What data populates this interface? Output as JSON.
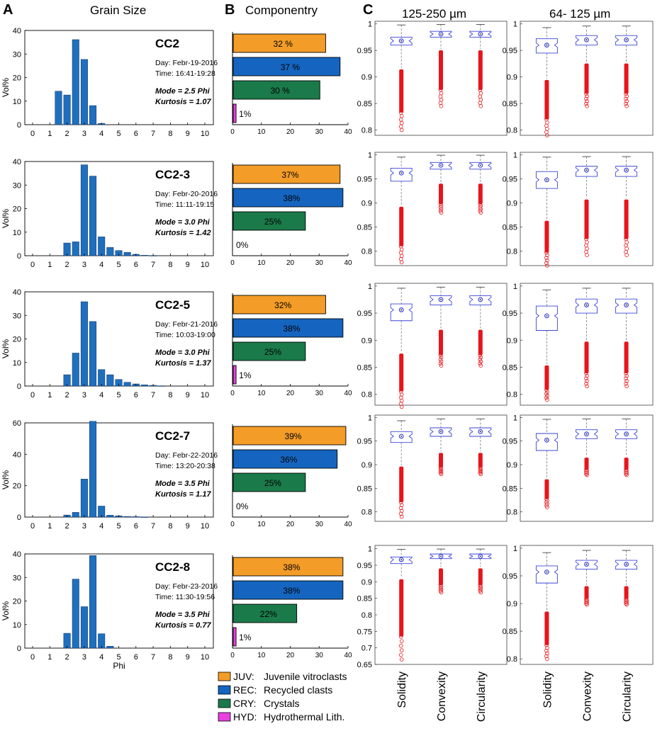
{
  "headers": {
    "A_letter": "A",
    "A_title": "Grain Size",
    "B_letter": "B",
    "B_title": "Componentry",
    "C_letter": "C",
    "C_col1": "125-250 µm",
    "C_col2": "64- 125 µm"
  },
  "legend": [
    {
      "code": "JUV:",
      "label": "Juvenile vitroclasts",
      "color": "#f39c27"
    },
    {
      "code": "REC:",
      "label": "Recycled clasts",
      "color": "#1565c0"
    },
    {
      "code": "CRY:",
      "label": "Crystals",
      "color": "#1a7a4a"
    },
    {
      "code": "HYD:",
      "label": "Hydrothermal Lith.",
      "color": "#e83fe0"
    }
  ],
  "colors": {
    "bar": "#1f6fbf",
    "box": "#3b44d6",
    "outlier": "#e8141b",
    "whisker": "#777777"
  },
  "chart_data": {
    "grain_size": {
      "type": "bar",
      "x": [
        0,
        0.5,
        1,
        1.5,
        2,
        2.5,
        3,
        3.5,
        4,
        4.5,
        5,
        5.5,
        6,
        6.5,
        7,
        7.5,
        8,
        8.5,
        9,
        9.5,
        10
      ],
      "xticks": [
        "0",
        "1",
        "2",
        "3",
        "4",
        "5",
        "6",
        "7",
        "8",
        "9",
        "10"
      ],
      "xlabel": "Phi",
      "ylabel": "Vol%",
      "samples": [
        {
          "name": "CC2",
          "day": "Day: Febr-19-2016",
          "time": "Time: 16:41-19:28",
          "mode": "Mode = 2.5 Phi",
          "kurtosis": "Kurtosis = 1.07",
          "ymax": 40,
          "yticks": [
            "0",
            "10",
            "20",
            "30",
            "40"
          ],
          "values": [
            0,
            0,
            0,
            14.2,
            12.6,
            36.1,
            27.7,
            8.1,
            0.5,
            0,
            0,
            0,
            0,
            0,
            0,
            0,
            0,
            0,
            0,
            0,
            0
          ]
        },
        {
          "name": "CC2-3",
          "day": "Day: Febr-20-2016",
          "time": "Time: 11:11-19:15",
          "mode": "Mode = 3.0 Phi",
          "kurtosis": "Kurtosis = 1.42",
          "ymax": 40,
          "yticks": [
            "0",
            "10",
            "20",
            "30",
            "40"
          ],
          "values": [
            0,
            0,
            0,
            0,
            5.4,
            5.9,
            38.6,
            33.8,
            8.0,
            3.5,
            2.2,
            1.4,
            0.6,
            0.2,
            0.1,
            0,
            0,
            0,
            0,
            0,
            0
          ]
        },
        {
          "name": "CC2-5",
          "day": "Day: Febr-21-2016",
          "time": "Time: 10:03-19:00",
          "mode": "Mode = 3.0 Phi",
          "kurtosis": "Kurtosis = 1.37",
          "ymax": 40,
          "yticks": [
            "0",
            "10",
            "20",
            "30",
            "40"
          ],
          "values": [
            0,
            0,
            0,
            0,
            4.8,
            14.0,
            35.8,
            27.4,
            7.0,
            4.8,
            2.8,
            1.6,
            0.9,
            0.5,
            0.3,
            0.1,
            0,
            0,
            0,
            0,
            0
          ]
        },
        {
          "name": "CC2-7",
          "day": "Day: Febr-22-2016",
          "time": "Time: 13:20-20:38",
          "mode": "Mode = 3.5 Phi",
          "kurtosis": "Kurtosis = 1.17",
          "ymax": 60,
          "yticks": [
            "0",
            "20",
            "40",
            "60"
          ],
          "values": [
            0,
            0,
            0,
            0,
            1.3,
            3.0,
            24.2,
            61.0,
            7.0,
            1.2,
            0.8,
            0.4,
            0.3,
            0.1,
            0,
            0,
            0,
            0,
            0,
            0,
            0
          ]
        },
        {
          "name": "CC2-8",
          "day": "Day: Febr-23-2016",
          "time": "Time: 11:30-19:56",
          "mode": "Mode = 3.5 Phi",
          "kurtosis": "Kurtosis = 0.77",
          "ymax": 40,
          "yticks": [
            "0",
            "10",
            "20",
            "30",
            "40"
          ],
          "values": [
            0,
            0,
            0,
            0,
            6.3,
            29.3,
            17.6,
            39.3,
            6.1,
            0.8,
            0,
            0,
            0,
            0,
            0,
            0,
            0,
            0,
            0,
            0,
            0
          ]
        }
      ]
    },
    "componentry": {
      "type": "bar",
      "orientation": "horizontal",
      "categories": [
        "JUV",
        "REC",
        "CRY",
        "HYD"
      ],
      "xlim": [
        0,
        40
      ],
      "xticks": [
        "0",
        "10",
        "20",
        "30",
        "40"
      ],
      "samples": [
        {
          "values": [
            32,
            37,
            30,
            1
          ],
          "labels": [
            "32 %",
            "37 %",
            "30 %",
            "1%"
          ]
        },
        {
          "values": [
            37,
            38,
            25,
            0
          ],
          "labels": [
            "37%",
            "38%",
            "25%",
            "0%"
          ]
        },
        {
          "values": [
            32,
            38,
            25,
            1
          ],
          "labels": [
            "32%",
            "38%",
            "25%",
            "1%"
          ]
        },
        {
          "values": [
            39,
            36,
            25,
            0
          ],
          "labels": [
            "39%",
            "36%",
            "25%",
            "0%"
          ]
        },
        {
          "values": [
            38,
            38,
            22,
            1
          ],
          "labels": [
            "38%",
            "38%",
            "22%",
            "1%"
          ]
        }
      ]
    },
    "shape": {
      "type": "box",
      "categories": [
        "Solidity",
        "Convexity",
        "Circularity"
      ],
      "columns": [
        "125-250 µm",
        "64- 125 µm"
      ],
      "rows": [
        {
          "ylim": [
            0.79,
            1.005
          ],
          "yticks": [
            "0.8",
            "0.85",
            "0.9",
            "0.95",
            "1"
          ],
          "tickvals": [
            0.8,
            0.85,
            0.9,
            0.95,
            1.0
          ],
          "panels": [
            [
              {
                "q1": 0.96,
                "med": 0.968,
                "q3": 0.975,
                "lw": 0.917,
                "uw": 0.998,
                "min": 0.8
              },
              {
                "q1": 0.975,
                "med": 0.981,
                "q3": 0.986,
                "lw": 0.953,
                "uw": 0.999,
                "min": 0.845
              },
              {
                "q1": 0.975,
                "med": 0.981,
                "q3": 0.986,
                "lw": 0.953,
                "uw": 0.999,
                "min": 0.845
              }
            ],
            [
              {
                "q1": 0.945,
                "med": 0.96,
                "q3": 0.972,
                "lw": 0.897,
                "uw": 0.993,
                "min": 0.79
              },
              {
                "q1": 0.96,
                "med": 0.97,
                "q3": 0.978,
                "lw": 0.928,
                "uw": 0.996,
                "min": 0.845
              },
              {
                "q1": 0.96,
                "med": 0.97,
                "q3": 0.978,
                "lw": 0.928,
                "uw": 0.996,
                "min": 0.845
              }
            ]
          ]
        },
        {
          "ylim": [
            0.77,
            1.005
          ],
          "yticks": [
            "0.8",
            "0.85",
            "0.9",
            "0.95",
            "1"
          ],
          "tickvals": [
            0.8,
            0.85,
            0.9,
            0.95,
            1.0
          ],
          "panels": [
            [
              {
                "q1": 0.945,
                "med": 0.962,
                "q3": 0.972,
                "lw": 0.895,
                "uw": 0.995,
                "min": 0.777
              },
              {
                "q1": 0.97,
                "med": 0.978,
                "q3": 0.984,
                "lw": 0.943,
                "uw": 0.999,
                "min": 0.88
              },
              {
                "q1": 0.97,
                "med": 0.978,
                "q3": 0.984,
                "lw": 0.943,
                "uw": 0.999,
                "min": 0.88
              }
            ],
            [
              {
                "q1": 0.93,
                "med": 0.948,
                "q3": 0.965,
                "lw": 0.866,
                "uw": 0.995,
                "min": 0.77
              },
              {
                "q1": 0.955,
                "med": 0.968,
                "q3": 0.976,
                "lw": 0.91,
                "uw": 0.996,
                "min": 0.792
              },
              {
                "q1": 0.955,
                "med": 0.968,
                "q3": 0.976,
                "lw": 0.91,
                "uw": 0.996,
                "min": 0.792
              }
            ]
          ]
        },
        {
          "ylim": [
            0.78,
            1.005
          ],
          "yticks": [
            "0.8",
            "0.85",
            "0.9",
            "0.95",
            "1"
          ],
          "tickvals": [
            0.8,
            0.85,
            0.9,
            0.95,
            1.0
          ],
          "panels": [
            [
              {
                "q1": 0.936,
                "med": 0.956,
                "q3": 0.967,
                "lw": 0.878,
                "uw": 0.996,
                "min": 0.777
              },
              {
                "q1": 0.965,
                "med": 0.975,
                "q3": 0.982,
                "lw": 0.922,
                "uw": 0.998,
                "min": 0.853
              },
              {
                "q1": 0.965,
                "med": 0.975,
                "q3": 0.982,
                "lw": 0.922,
                "uw": 0.998,
                "min": 0.853
              }
            ],
            [
              {
                "q1": 0.918,
                "med": 0.945,
                "q3": 0.963,
                "lw": 0.856,
                "uw": 0.993,
                "min": 0.79
              },
              {
                "q1": 0.95,
                "med": 0.965,
                "q3": 0.976,
                "lw": 0.9,
                "uw": 0.996,
                "min": 0.815
              },
              {
                "q1": 0.95,
                "med": 0.965,
                "q3": 0.976,
                "lw": 0.9,
                "uw": 0.996,
                "min": 0.815
              }
            ]
          ]
        },
        {
          "ylim": [
            0.78,
            1.005
          ],
          "yticks": [
            "0.8",
            "0.85",
            "0.9",
            "0.95",
            "1"
          ],
          "tickvals": [
            0.8,
            0.85,
            0.9,
            0.95,
            1.0
          ],
          "panels": [
            [
              {
                "q1": 0.947,
                "med": 0.96,
                "q3": 0.97,
                "lw": 0.899,
                "uw": 0.993,
                "min": 0.79
              },
              {
                "q1": 0.96,
                "med": 0.97,
                "q3": 0.978,
                "lw": 0.928,
                "uw": 0.997,
                "min": 0.88
              },
              {
                "q1": 0.96,
                "med": 0.97,
                "q3": 0.978,
                "lw": 0.928,
                "uw": 0.997,
                "min": 0.88
              }
            ],
            [
              {
                "q1": 0.93,
                "med": 0.952,
                "q3": 0.966,
                "lw": 0.872,
                "uw": 0.996,
                "min": 0.81
              },
              {
                "q1": 0.955,
                "med": 0.965,
                "q3": 0.974,
                "lw": 0.918,
                "uw": 0.997,
                "min": 0.878
              },
              {
                "q1": 0.955,
                "med": 0.965,
                "q3": 0.974,
                "lw": 0.918,
                "uw": 0.997,
                "min": 0.878
              }
            ]
          ]
        },
        {
          "ylim": [
            0.65,
            1.01
          ],
          "yticks": [
            "0.65",
            "0.7",
            "0.75",
            "0.8",
            "0.85",
            "0.9",
            "0.95",
            "1"
          ],
          "tickvals": [
            0.65,
            0.7,
            0.75,
            0.8,
            0.85,
            0.9,
            0.95,
            1.0
          ],
          "panels": [
            [
              {
                "q1": 0.955,
                "med": 0.967,
                "q3": 0.975,
                "lw": 0.912,
                "uw": 0.998,
                "min": 0.665
              },
              {
                "q1": 0.97,
                "med": 0.977,
                "q3": 0.984,
                "lw": 0.945,
                "uw": 0.999,
                "min": 0.868
              },
              {
                "q1": 0.97,
                "med": 0.977,
                "q3": 0.984,
                "lw": 0.945,
                "uw": 0.999,
                "min": 0.868
              }
            ]
          ]
        },
        {
          "ylim": [
            0.79,
            1.005
          ],
          "yticks": [
            "0.8",
            "0.85",
            "0.9",
            "0.95",
            "1"
          ],
          "tickvals": [
            0.8,
            0.85,
            0.9,
            0.95,
            1.0
          ],
          "panels": []
        }
      ],
      "row5_right": [
        {
          "q1": 0.937,
          "med": 0.957,
          "q3": 0.968,
          "lw": 0.888,
          "uw": 0.992,
          "min": 0.8
        },
        {
          "q1": 0.962,
          "med": 0.971,
          "q3": 0.978,
          "lw": 0.934,
          "uw": 0.996,
          "min": 0.898
        },
        {
          "q1": 0.962,
          "med": 0.971,
          "q3": 0.978,
          "lw": 0.934,
          "uw": 0.996,
          "min": 0.898
        }
      ],
      "row5_right_ylim": [
        0.79,
        1.005
      ],
      "row5_right_yticks": [
        "0.8",
        "0.85",
        "0.9",
        "0.95",
        "1"
      ],
      "row5_right_tickvals": [
        0.8,
        0.85,
        0.9,
        0.95,
        1.0
      ]
    }
  }
}
